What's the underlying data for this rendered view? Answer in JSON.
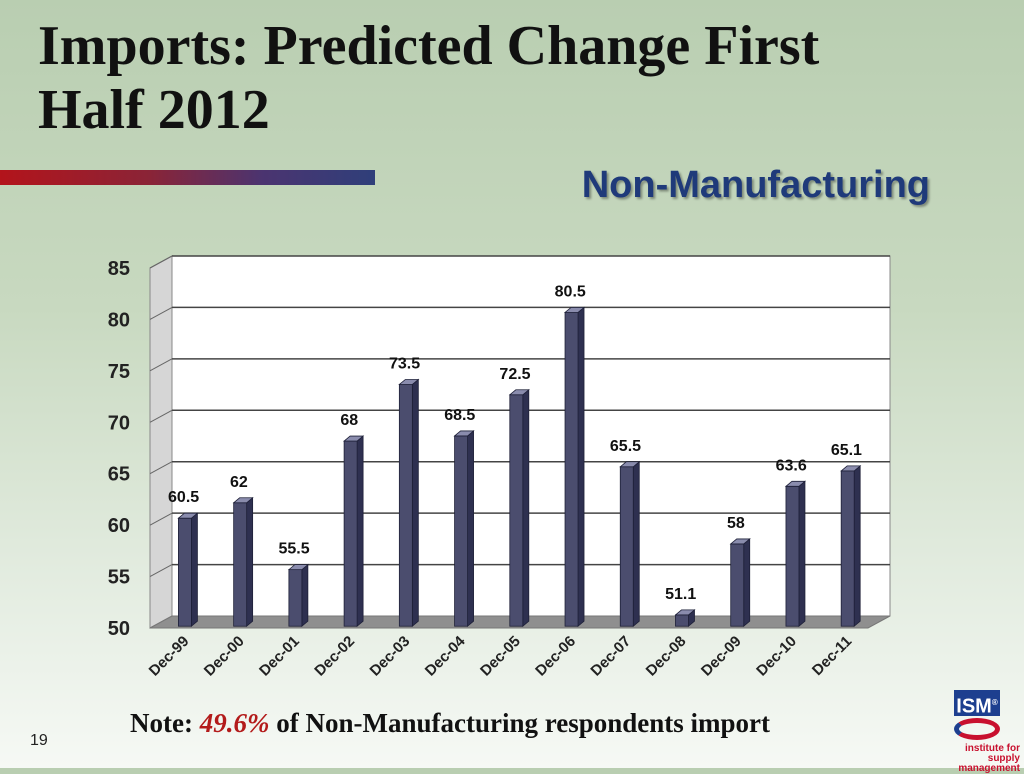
{
  "slide": {
    "title_line1": "Imports: Predicted Change First",
    "title_line2": "Half 2012",
    "subtitle": "Non-Manufacturing",
    "note_prefix": "Note:",
    "note_percent": "49.6%",
    "note_suffix": "of Non-Manufacturing respondents import",
    "page_number": "19",
    "logo": {
      "text": "ISM",
      "mark": "®",
      "tagline_1": "institute for",
      "tagline_2": "supply management"
    }
  },
  "chart_data": {
    "type": "bar",
    "title": "",
    "xlabel": "",
    "ylabel": "",
    "categories": [
      "Dec-99",
      "Dec-00",
      "Dec-01",
      "Dec-02",
      "Dec-03",
      "Dec-04",
      "Dec-05",
      "Dec-06",
      "Dec-07",
      "Dec-08",
      "Dec-09",
      "Dec-10",
      "Dec-11"
    ],
    "values": [
      60.5,
      62,
      55.5,
      68,
      73.5,
      68.5,
      72.5,
      80.5,
      65.5,
      51.1,
      58,
      63.6,
      65.1
    ],
    "value_labels": [
      "60.5",
      "62",
      "55.5",
      "68",
      "73.5",
      "68.5",
      "72.5",
      "80.5",
      "65.5",
      "51.1",
      "58",
      "63.6",
      "65.1"
    ],
    "ylim": [
      50,
      85
    ],
    "yticks": [
      50,
      55,
      60,
      65,
      70,
      75,
      80,
      85
    ],
    "grid": true,
    "legend": "none",
    "colors": {
      "bar_front": "#4b4d6e",
      "bar_top": "#8a8cad",
      "bar_side": "#2e3050",
      "wall": "#ffffff",
      "side_wall": "#d6d6d6",
      "floor": "#8f8f8f"
    }
  }
}
